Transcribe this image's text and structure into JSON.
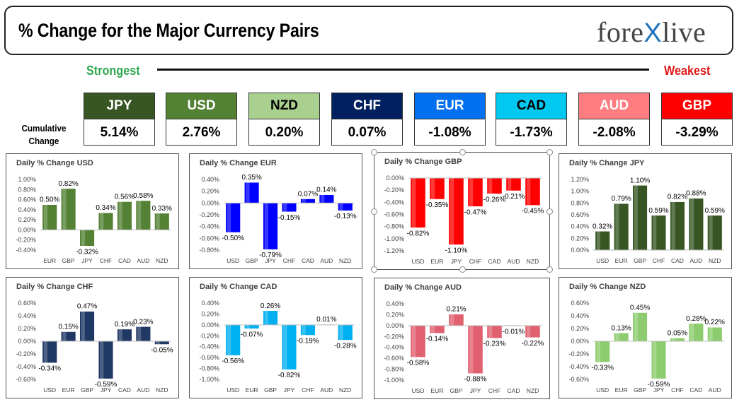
{
  "header": {
    "title": "% Change for the Major Currency Pairs",
    "logo_left": "fore",
    "logo_x": "X",
    "logo_right": "live"
  },
  "ranking": {
    "strongest_label": "Strongest",
    "weakest_label": "Weakest",
    "cumulative_label_line1": "Cumulative",
    "cumulative_label_line2": "Change",
    "currencies": [
      {
        "code": "JPY",
        "value": "5.14%",
        "bg": "#375623",
        "fg": "#ffffff"
      },
      {
        "code": "USD",
        "value": "2.76%",
        "bg": "#548235",
        "fg": "#ffffff"
      },
      {
        "code": "NZD",
        "value": "0.20%",
        "bg": "#a9d08e",
        "fg": "#000000"
      },
      {
        "code": "CHF",
        "value": "0.07%",
        "bg": "#002060",
        "fg": "#ffffff"
      },
      {
        "code": "EUR",
        "value": "-1.08%",
        "bg": "#0070f0",
        "fg": "#ffffff"
      },
      {
        "code": "CAD",
        "value": "-1.73%",
        "bg": "#00c8f0",
        "fg": "#000000"
      },
      {
        "code": "AUD",
        "value": "-2.08%",
        "bg": "#ff7c80",
        "fg": "#ffffff"
      },
      {
        "code": "GBP",
        "value": "-3.29%",
        "bg": "#ff0000",
        "fg": "#ffffff"
      }
    ]
  },
  "chart_data": [
    {
      "type": "bar",
      "title": "Daily % Change USD",
      "categories": [
        "EUR",
        "GBP",
        "JPY",
        "CHF",
        "CAD",
        "AUD",
        "NZD"
      ],
      "values": [
        0.5,
        0.82,
        -0.32,
        0.34,
        0.56,
        0.58,
        0.33
      ],
      "labels": [
        "0.50%",
        "0.82%",
        "-0.32%",
        "0.34%",
        "0.56%",
        "0.58%",
        "0.33%"
      ],
      "ticks": [
        "1.00%",
        "0.80%",
        "0.60%",
        "0.40%",
        "0.20%",
        "0.00%",
        "-0.20%",
        "-0.40%"
      ],
      "ylim": [
        -0.4,
        1.0
      ],
      "color": "#548235"
    },
    {
      "type": "bar",
      "title": "Daily % Change EUR",
      "categories": [
        "USD",
        "GBP",
        "JPY",
        "CHF",
        "CAD",
        "AUD",
        "NZD"
      ],
      "values": [
        -0.5,
        0.35,
        -0.79,
        -0.15,
        0.07,
        0.14,
        -0.13
      ],
      "labels": [
        "-0.50%",
        "0.35%",
        "-0.79%",
        "-0.15%",
        "0.07%",
        "0.14%",
        "-0.13%"
      ],
      "ticks": [
        "0.40%",
        "0.20%",
        "0.00%",
        "-0.20%",
        "-0.40%",
        "-0.60%",
        "-0.80%"
      ],
      "ylim": [
        -0.8,
        0.4
      ],
      "color": "#0000ff"
    },
    {
      "type": "bar",
      "title": "Daily % Change GBP",
      "categories": [
        "USD",
        "EUR",
        "JPY",
        "CHF",
        "CAD",
        "AUD",
        "NZD"
      ],
      "values": [
        -0.82,
        -0.35,
        -1.1,
        -0.47,
        -0.26,
        -0.21,
        -0.45
      ],
      "labels": [
        "-0.82%",
        "-0.35%",
        "-1.10%",
        "-0.47%",
        "-0.26%",
        "-0.21%",
        "-0.45%"
      ],
      "ticks": [
        "0.00%",
        "-0.20%",
        "-0.40%",
        "-0.60%",
        "-0.80%",
        "-1.00%",
        "-1.20%"
      ],
      "ylim": [
        -1.2,
        0.0
      ],
      "color": "#ff0000"
    },
    {
      "type": "bar",
      "title": "Daily % Change JPY",
      "categories": [
        "USD",
        "EUR",
        "GBP",
        "CHF",
        "CAD",
        "AUD",
        "NZD"
      ],
      "values": [
        0.32,
        0.79,
        1.1,
        0.59,
        0.82,
        0.88,
        0.59
      ],
      "labels": [
        "0.32%",
        "0.79%",
        "1.10%",
        "0.59%",
        "0.82%",
        "0.88%",
        "0.59%"
      ],
      "ticks": [
        "1.20%",
        "1.00%",
        "0.80%",
        "0.60%",
        "0.40%",
        "0.20%",
        "0.00%"
      ],
      "ylim": [
        0.0,
        1.2
      ],
      "color": "#375623"
    },
    {
      "type": "bar",
      "title": "Daily % Change CHF",
      "categories": [
        "USD",
        "EUR",
        "GBP",
        "JPY",
        "CAD",
        "AUD",
        "NZD"
      ],
      "values": [
        -0.34,
        0.15,
        0.47,
        -0.59,
        0.19,
        0.23,
        -0.05
      ],
      "labels": [
        "-0.34%",
        "0.15%",
        "0.47%",
        "-0.59%",
        "0.19%",
        "0.23%",
        "-0.05%"
      ],
      "ticks": [
        "0.60%",
        "0.40%",
        "0.20%",
        "0.00%",
        "-0.20%",
        "-0.40%",
        "-0.60%"
      ],
      "ylim": [
        -0.6,
        0.6
      ],
      "color": "#1f3864"
    },
    {
      "type": "bar",
      "title": "Daily % Change CAD",
      "categories": [
        "USD",
        "EUR",
        "GBP",
        "JPY",
        "CHF",
        "AUD",
        "NZD"
      ],
      "values": [
        -0.56,
        -0.07,
        0.26,
        -0.82,
        -0.19,
        0.01,
        -0.28
      ],
      "labels": [
        "-0.56%",
        "-0.07%",
        "0.26%",
        "-0.82%",
        "-0.19%",
        "0.01%",
        "-0.28%"
      ],
      "ticks": [
        "0.40%",
        "0.20%",
        "0.00%",
        "-0.20%",
        "-0.40%",
        "-0.60%",
        "-0.80%",
        "-1.00%"
      ],
      "ylim": [
        -1.0,
        0.4
      ],
      "color": "#00b0f0"
    },
    {
      "type": "bar",
      "title": "Daily % Change AUD",
      "categories": [
        "USD",
        "EUR",
        "GBP",
        "JPY",
        "CHF",
        "CAD",
        "NZD"
      ],
      "values": [
        -0.58,
        -0.14,
        0.21,
        -0.88,
        -0.23,
        -0.01,
        -0.22
      ],
      "labels": [
        "-0.58%",
        "-0.14%",
        "0.21%",
        "-0.88%",
        "-0.23%",
        "-0.01%",
        "-0.22%"
      ],
      "ticks": [
        "0.40%",
        "0.20%",
        "0.00%",
        "-0.20%",
        "-0.40%",
        "-0.60%",
        "-0.80%",
        "-1.00%"
      ],
      "ylim": [
        -1.0,
        0.4
      ],
      "color": "#e06070"
    },
    {
      "type": "bar",
      "title": "Daily % Change NZD",
      "categories": [
        "USD",
        "EUR",
        "GBP",
        "JPY",
        "CHF",
        "CAD",
        "AUD"
      ],
      "values": [
        -0.33,
        0.13,
        0.45,
        -0.59,
        0.05,
        0.28,
        0.22
      ],
      "labels": [
        "-0.33%",
        "0.13%",
        "0.45%",
        "-0.59%",
        "0.05%",
        "0.28%",
        "0.22%"
      ],
      "ticks": [
        "0.60%",
        "0.40%",
        "0.20%",
        "0.00%",
        "-0.20%",
        "-0.40%",
        "-0.60%"
      ],
      "ylim": [
        -0.6,
        0.6
      ],
      "color": "#8ccc6e"
    }
  ]
}
